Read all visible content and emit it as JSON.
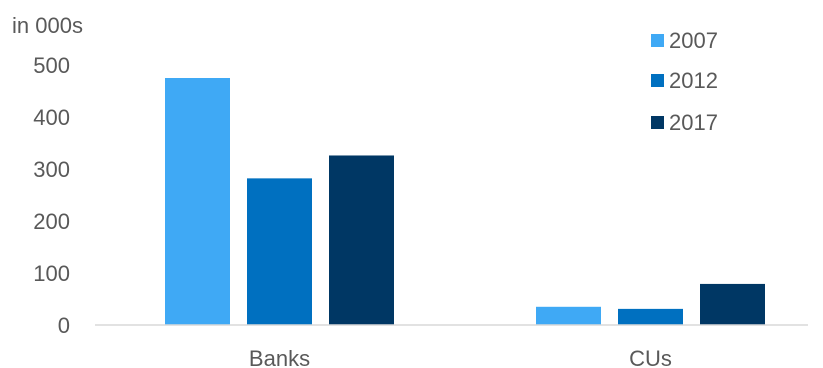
{
  "chart_data": {
    "type": "bar",
    "title": "",
    "xlabel": "",
    "ylabel": "in 000s",
    "categories": [
      "Banks",
      "CUs"
    ],
    "series": [
      {
        "name": "2007",
        "values": [
          475,
          35
        ]
      },
      {
        "name": "2012",
        "values": [
          282,
          31
        ]
      },
      {
        "name": "2017",
        "values": [
          326,
          79
        ]
      }
    ],
    "ylim": [
      0,
      500
    ],
    "yticks": [
      "0",
      "100",
      "200",
      "300",
      "400",
      "500"
    ],
    "grid": false,
    "legend": "top-right",
    "colors": [
      "#3fa9f5",
      "#0070c0",
      "#003764"
    ],
    "axis_color": "#d9d9d9"
  }
}
